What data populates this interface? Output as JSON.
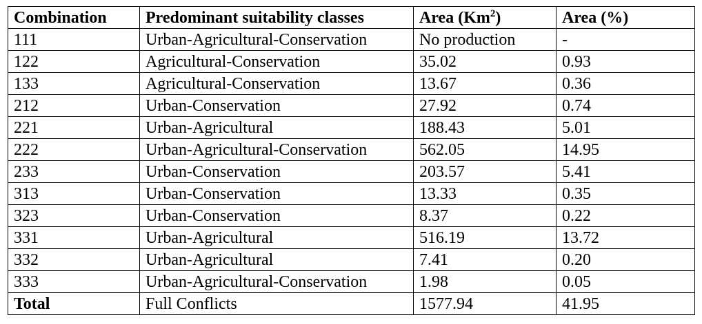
{
  "table": {
    "headers": {
      "combination": "Combination",
      "classes": "Predominant suitability classes",
      "area_km_prefix": "Area (Km",
      "area_km_sup": "2",
      "area_km_suffix": ")",
      "area_pct": "Area (%)"
    },
    "rows": [
      {
        "combination": "111",
        "classes": "Urban-Agricultural-Conservation",
        "area_km": "No production",
        "area_pct": "-"
      },
      {
        "combination": "122",
        "classes": "Agricultural-Conservation",
        "area_km": "35.02",
        "area_pct": "0.93"
      },
      {
        "combination": "133",
        "classes": "Agricultural-Conservation",
        "area_km": "13.67",
        "area_pct": "0.36"
      },
      {
        "combination": "212",
        "classes": "Urban-Conservation",
        "area_km": "27.92",
        "area_pct": "0.74"
      },
      {
        "combination": "221",
        "classes": "Urban-Agricultural",
        "area_km": "188.43",
        "area_pct": "5.01"
      },
      {
        "combination": "222",
        "classes": "Urban-Agricultural-Conservation",
        "area_km": "562.05",
        "area_pct": "14.95"
      },
      {
        "combination": "233",
        "classes": "Urban-Conservation",
        "area_km": "203.57",
        "area_pct": "5.41"
      },
      {
        "combination": "313",
        "classes": "Urban-Conservation",
        "area_km": "13.33",
        "area_pct": "0.35"
      },
      {
        "combination": "323",
        "classes": "Urban-Conservation",
        "area_km": "8.37",
        "area_pct": "0.22"
      },
      {
        "combination": "331",
        "classes": "Urban-Agricultural",
        "area_km": "516.19",
        "area_pct": "13.72"
      },
      {
        "combination": "332",
        "classes": "Urban-Agricultural",
        "area_km": "7.41",
        "area_pct": "0.20"
      },
      {
        "combination": "333",
        "classes": "Urban-Agricultural-Conservation",
        "area_km": "1.98",
        "area_pct": "0.05"
      }
    ],
    "total": {
      "combination": "Total",
      "classes": "Full Conflicts",
      "area_km": "1577.94",
      "area_pct": "41.95"
    }
  }
}
